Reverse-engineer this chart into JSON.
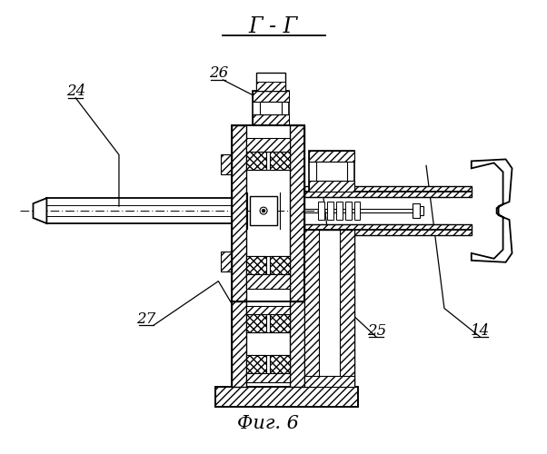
{
  "title": "Г - Г",
  "fig_label": "Фиг. 6",
  "bg_color": "#ffffff",
  "line_color": "#000000",
  "labels": [
    "24",
    "25",
    "26",
    "27",
    "14"
  ]
}
